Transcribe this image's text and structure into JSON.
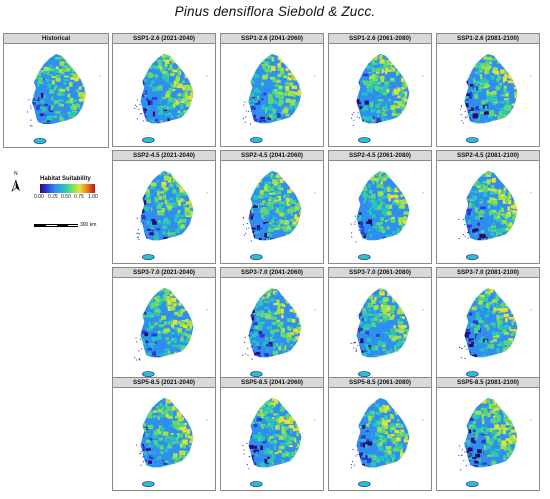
{
  "title": "Pinus densiflora Siebold & Zucc.",
  "historical": {
    "label": "Historical"
  },
  "scenarios": [
    {
      "label": "SSP1-2.6 (2021-2040)"
    },
    {
      "label": "SSP1-2.6 (2041-2060)"
    },
    {
      "label": "SSP1-2.6 (2061-2080)"
    },
    {
      "label": "SSP1-2.6 (2081-2100)"
    },
    {
      "label": "SSP2-4.5 (2021-2040)"
    },
    {
      "label": "SSP2-4.5 (2041-2060)"
    },
    {
      "label": "SSP2-4.5 (2061-2080)"
    },
    {
      "label": "SSP2-4.5 (2081-2100)"
    },
    {
      "label": "SSP3-7.0 (2021-2040)"
    },
    {
      "label": "SSP3-7.0 (2041-2060)"
    },
    {
      "label": "SSP3-7.0 (2061-2080)"
    },
    {
      "label": "SSP3-7.0 (2081-2100)"
    },
    {
      "label": "SSP5-8.5 (2021-2040)"
    },
    {
      "label": "SSP5-8.5 (2041-2060)"
    },
    {
      "label": "SSP5-8.5 (2061-2080)"
    },
    {
      "label": "SSP5-8.5 (2081-2100)"
    }
  ],
  "legend": {
    "title": "Habitat Suitability",
    "ticks": [
      "0.00",
      "0.25",
      "0.50",
      "0.75",
      "1.00"
    ]
  },
  "north_arrow": {
    "label": "N"
  },
  "scale_bar": {
    "label": "300 km"
  },
  "colors": {
    "panel_header_bg": "#d9d9d9",
    "map_low": "#2c3bd1",
    "map_mid": "#29c6b8",
    "map_high": "#e8e03a"
  }
}
